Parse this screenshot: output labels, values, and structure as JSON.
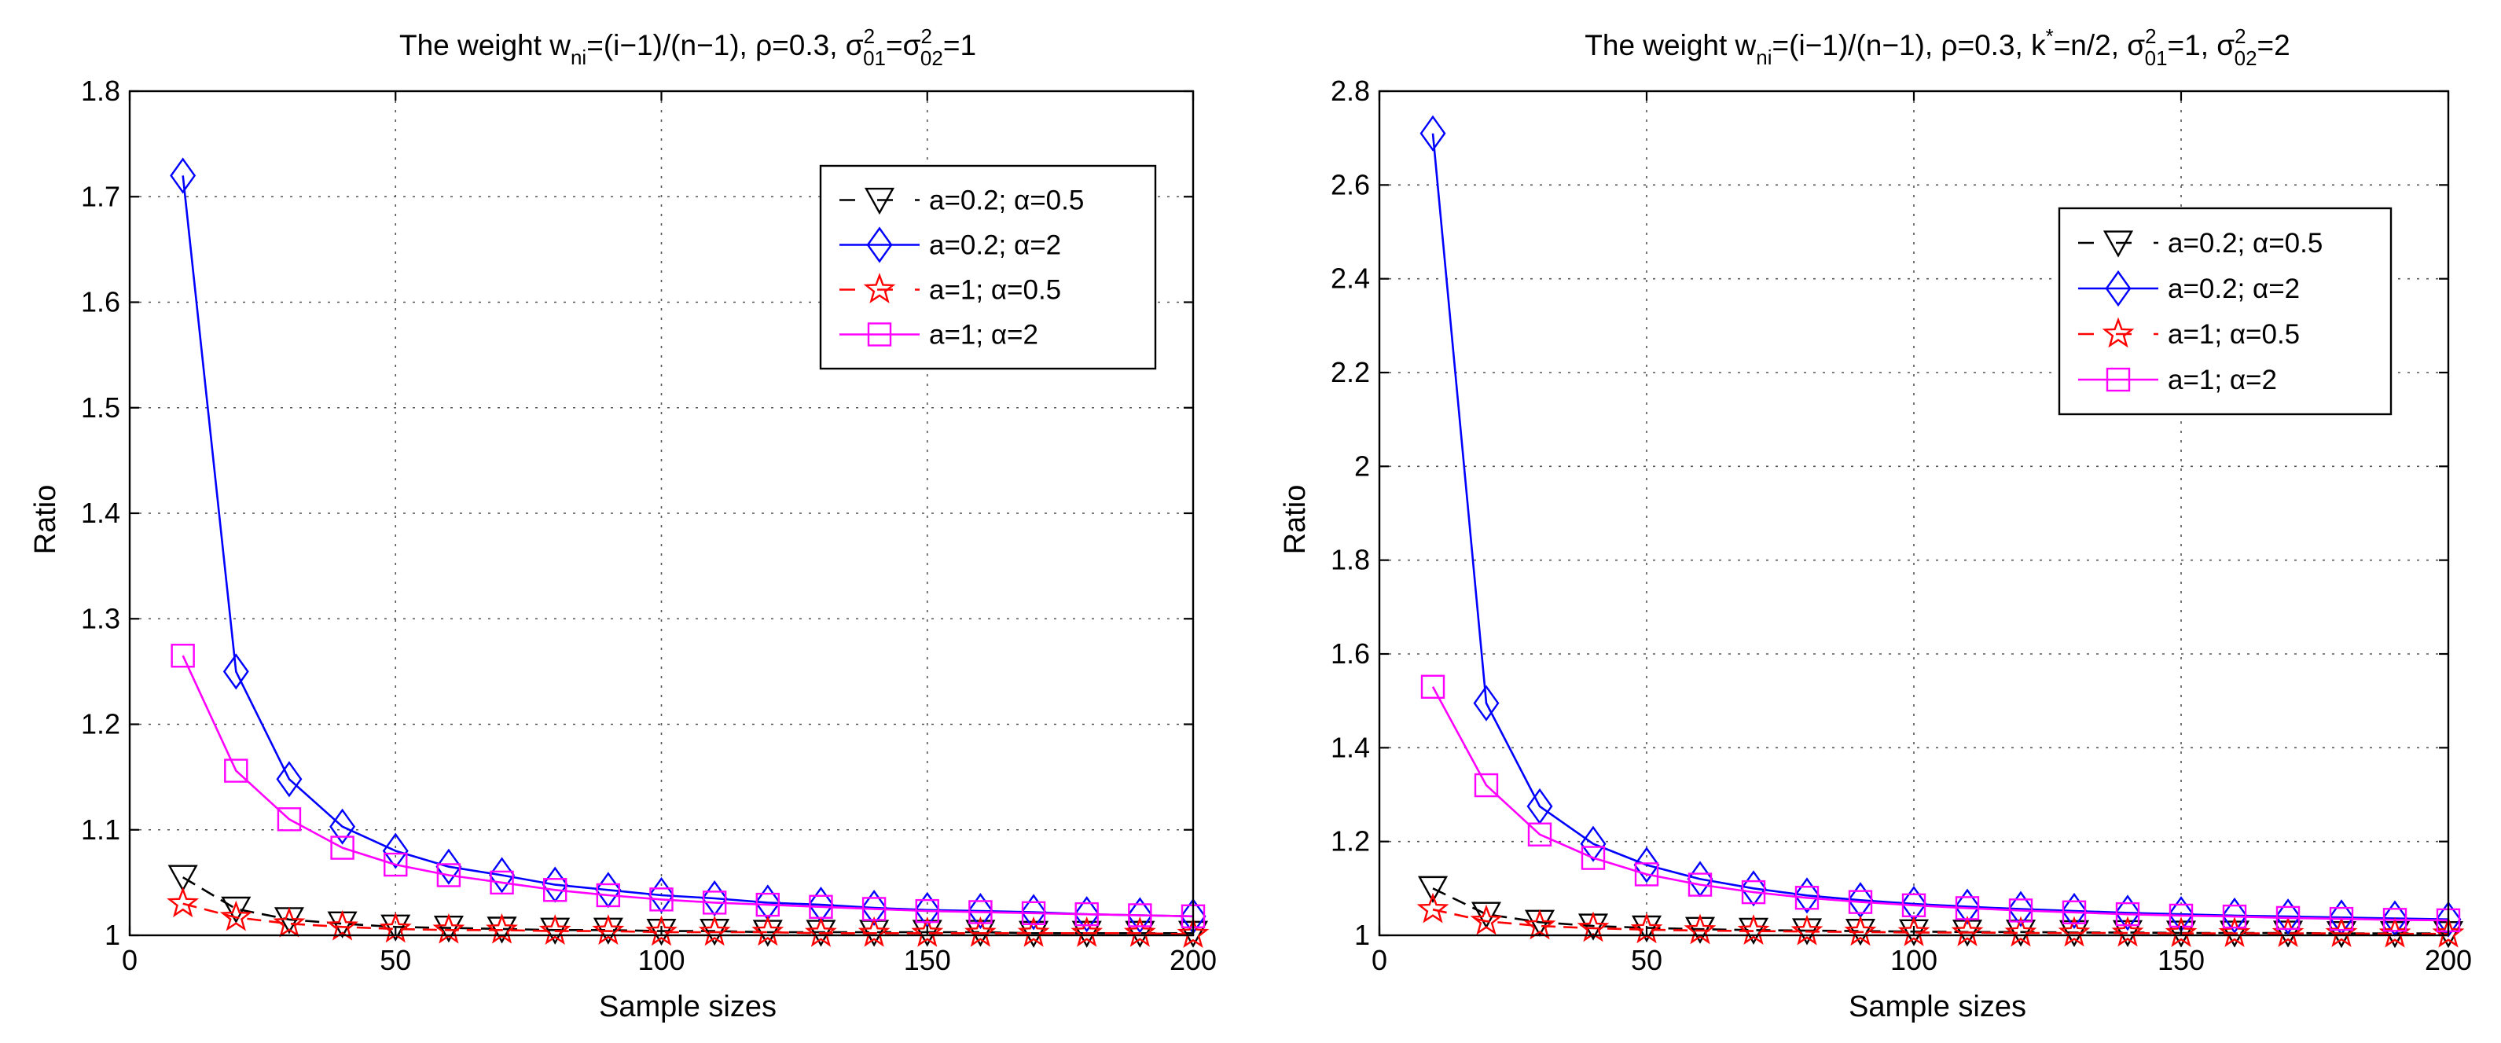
{
  "chart_data": [
    {
      "type": "line",
      "title_parts": {
        "pre": "The weight w",
        "sub": "ni",
        "post": "=(i−1)/(n−1), ρ=0.3, σ",
        "sigma1_sup": "2",
        "sigma1_sub": "01",
        "mid": "=σ",
        "sigma2_sup": "2",
        "sigma2_sub": "02",
        "end": "=1"
      },
      "xlabel": "Sample sizes",
      "ylabel": "Ratio",
      "xlim": [
        0,
        200
      ],
      "ylim": [
        1,
        1.8
      ],
      "xticks": [
        "0",
        "50",
        "100",
        "150",
        "200"
      ],
      "yticks": [
        "1",
        "1.1",
        "1.2",
        "1.3",
        "1.4",
        "1.5",
        "1.6",
        "1.7",
        "1.8"
      ],
      "grid": true,
      "legend_position": "top-right",
      "x": [
        10,
        20,
        30,
        40,
        50,
        60,
        70,
        80,
        90,
        100,
        110,
        120,
        130,
        140,
        150,
        160,
        170,
        180,
        190,
        200
      ],
      "series": [
        {
          "name": "a=0.2; α=0.5",
          "color": "#000000",
          "marker": "triangle-down",
          "linestyle": "dashed",
          "values": [
            1.055,
            1.025,
            1.015,
            1.011,
            1.008,
            1.007,
            1.006,
            1.005,
            1.005,
            1.004,
            1.004,
            1.003,
            1.003,
            1.003,
            1.003,
            1.003,
            1.002,
            1.002,
            1.002,
            1.002
          ]
        },
        {
          "name": "a=0.2; α=2",
          "color": "#0000ff",
          "marker": "diamond",
          "linestyle": "solid",
          "values": [
            1.72,
            1.25,
            1.148,
            1.103,
            1.08,
            1.065,
            1.057,
            1.048,
            1.043,
            1.038,
            1.035,
            1.031,
            1.029,
            1.026,
            1.024,
            1.023,
            1.022,
            1.02,
            1.019,
            1.018
          ]
        },
        {
          "name": "a=1; α=0.5",
          "color": "#ff0000",
          "marker": "star",
          "linestyle": "dashed",
          "values": [
            1.03,
            1.017,
            1.011,
            1.008,
            1.006,
            1.005,
            1.005,
            1.004,
            1.004,
            1.003,
            1.003,
            1.003,
            1.002,
            1.002,
            1.002,
            1.002,
            1.002,
            1.002,
            1.002,
            1.001
          ]
        },
        {
          "name": "a=1; α=2",
          "color": "#ff00ff",
          "marker": "square",
          "linestyle": "solid",
          "values": [
            1.265,
            1.156,
            1.11,
            1.083,
            1.067,
            1.057,
            1.05,
            1.043,
            1.038,
            1.034,
            1.031,
            1.029,
            1.027,
            1.025,
            1.023,
            1.022,
            1.021,
            1.02,
            1.019,
            1.018
          ]
        }
      ]
    },
    {
      "type": "line",
      "title_parts": {
        "pre": "The weight w",
        "sub": "ni",
        "post": "=(i−1)/(n−1), ρ=0.3, k",
        "k_sup": "*",
        "k_post": "=n/2, σ",
        "sigma1_sup": "2",
        "sigma1_sub": "01",
        "mid": "=1, σ",
        "sigma2_sup": "2",
        "sigma2_sub": "02",
        "end": "=2"
      },
      "xlabel": "Sample sizes",
      "ylabel": "Ratio",
      "xlim": [
        0,
        200
      ],
      "ylim": [
        1,
        2.8
      ],
      "xticks": [
        "0",
        "50",
        "100",
        "150",
        "200"
      ],
      "yticks": [
        "1",
        "1.2",
        "1.4",
        "1.6",
        "1.8",
        "2",
        "2.2",
        "2.4",
        "2.6",
        "2.8"
      ],
      "grid": true,
      "legend_position": "top-right",
      "x": [
        10,
        20,
        30,
        40,
        50,
        60,
        70,
        80,
        90,
        100,
        110,
        120,
        130,
        140,
        150,
        160,
        170,
        180,
        190,
        200
      ],
      "series": [
        {
          "name": "a=0.2; α=0.5",
          "color": "#000000",
          "marker": "triangle-down",
          "linestyle": "dashed",
          "values": [
            1.1,
            1.045,
            1.028,
            1.02,
            1.016,
            1.013,
            1.011,
            1.01,
            1.009,
            1.008,
            1.007,
            1.007,
            1.006,
            1.006,
            1.005,
            1.005,
            1.005,
            1.004,
            1.004,
            1.004
          ]
        },
        {
          "name": "a=0.2; α=2",
          "color": "#0000ff",
          "marker": "diamond",
          "linestyle": "solid",
          "values": [
            2.71,
            1.495,
            1.275,
            1.195,
            1.15,
            1.12,
            1.1,
            1.085,
            1.075,
            1.067,
            1.061,
            1.056,
            1.052,
            1.048,
            1.045,
            1.042,
            1.04,
            1.038,
            1.036,
            1.034
          ]
        },
        {
          "name": "a=1; α=0.5",
          "color": "#ff0000",
          "marker": "star",
          "linestyle": "dashed",
          "values": [
            1.055,
            1.03,
            1.02,
            1.015,
            1.012,
            1.01,
            1.009,
            1.008,
            1.007,
            1.006,
            1.006,
            1.005,
            1.005,
            1.005,
            1.004,
            1.004,
            1.004,
            1.004,
            1.003,
            1.003
          ]
        },
        {
          "name": "a=1; α=2",
          "color": "#ff00ff",
          "marker": "square",
          "linestyle": "solid",
          "values": [
            1.53,
            1.32,
            1.215,
            1.165,
            1.13,
            1.108,
            1.092,
            1.08,
            1.071,
            1.064,
            1.058,
            1.053,
            1.049,
            1.045,
            1.042,
            1.04,
            1.037,
            1.035,
            1.033,
            1.032
          ]
        }
      ]
    }
  ]
}
